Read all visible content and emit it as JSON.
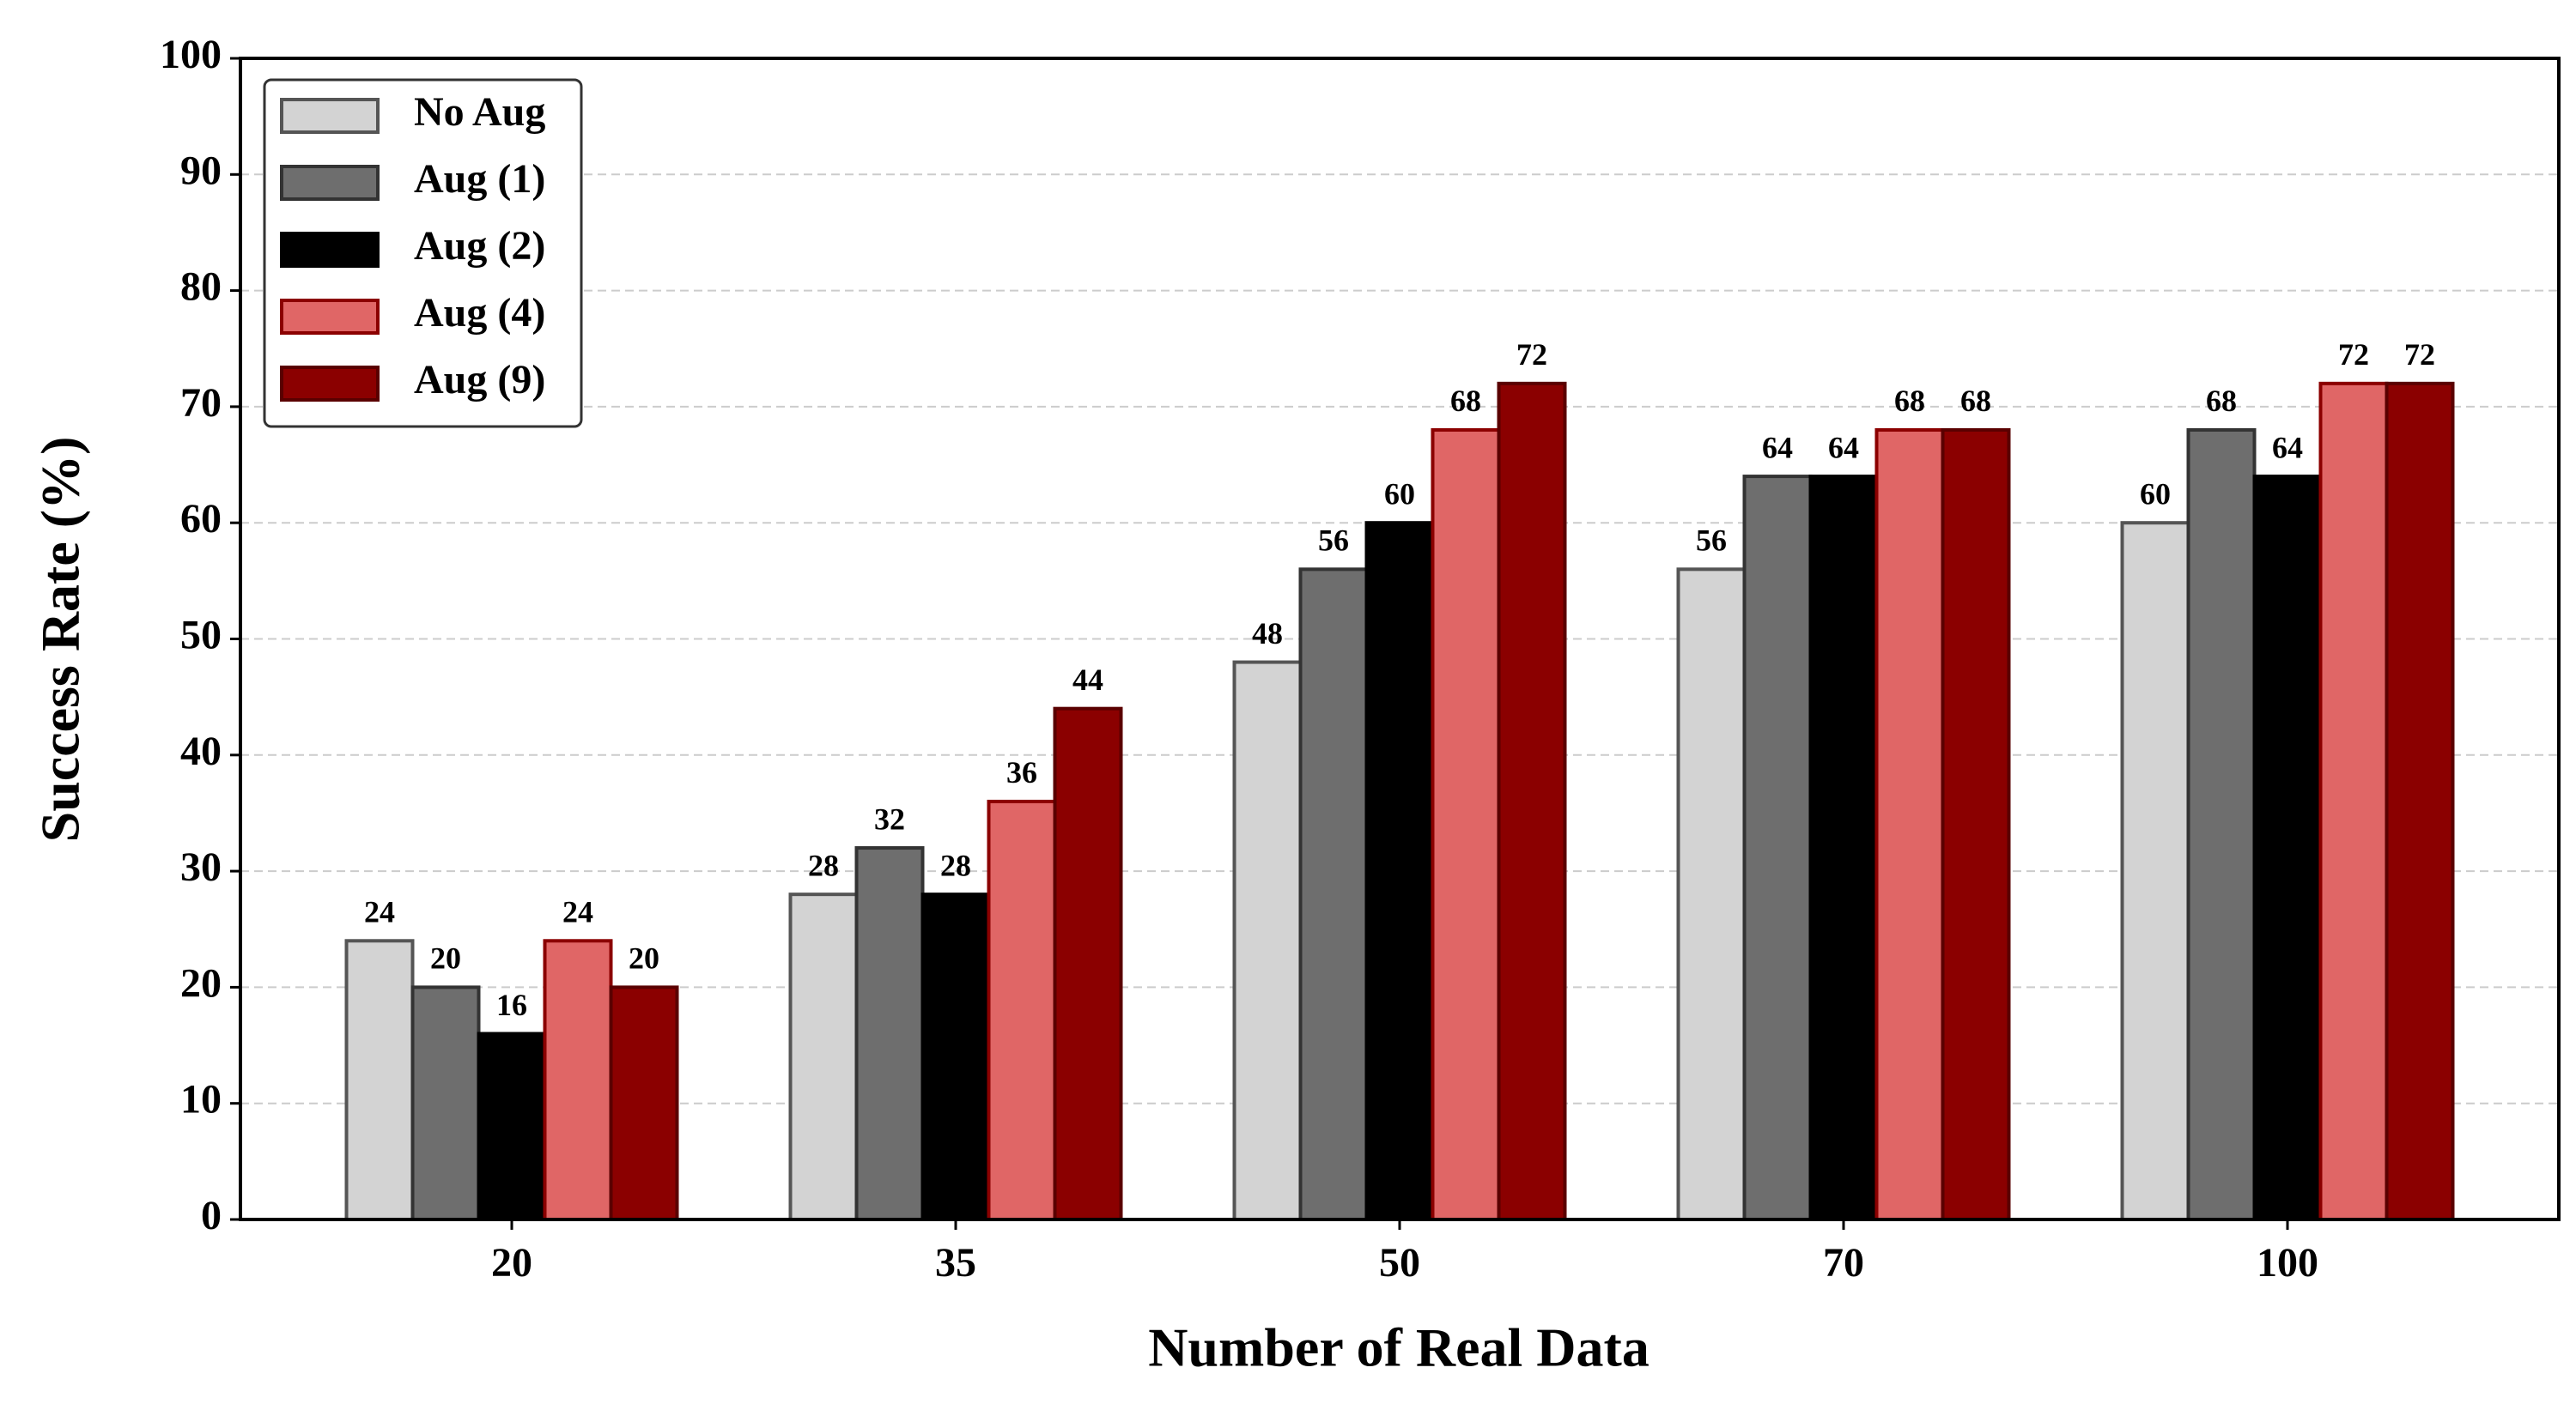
{
  "chart_data": {
    "type": "bar",
    "xlabel": "Number of Real Data",
    "ylabel": "Success Rate (%)",
    "categories": [
      "20",
      "35",
      "50",
      "70",
      "100"
    ],
    "series": [
      {
        "name": "No Aug",
        "color": "#d3d3d3",
        "edge": "#555555",
        "values": [
          24,
          28,
          48,
          56,
          60
        ]
      },
      {
        "name": "Aug (1)",
        "color": "#6e6e6e",
        "edge": "#333333",
        "values": [
          20,
          32,
          56,
          64,
          68
        ]
      },
      {
        "name": "Aug (2)",
        "color": "#000000",
        "edge": "#000000",
        "values": [
          16,
          28,
          60,
          64,
          64
        ]
      },
      {
        "name": "Aug (4)",
        "color": "#e06666",
        "edge": "#8b0000",
        "values": [
          24,
          36,
          68,
          68,
          72
        ]
      },
      {
        "name": "Aug (9)",
        "color": "#8b0000",
        "edge": "#5a0000",
        "values": [
          20,
          44,
          72,
          68,
          72
        ]
      }
    ],
    "ylim": [
      0,
      100
    ],
    "yticks": [
      0,
      10,
      20,
      30,
      40,
      50,
      60,
      70,
      80,
      90,
      100
    ],
    "grid": true,
    "legend": "upper left"
  }
}
